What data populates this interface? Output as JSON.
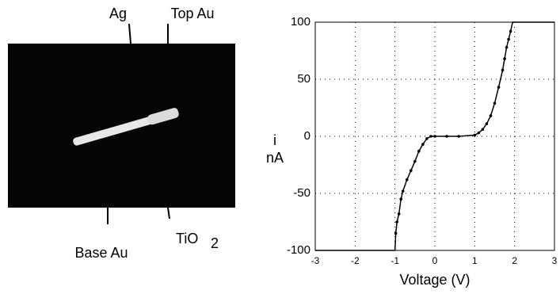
{
  "image_labels": {
    "ag": "Ag",
    "top_au": "Top Au",
    "base_au": "Base Au",
    "tio2": {
      "text": "TiO",
      "subscript": "2"
    }
  },
  "chart_data": {
    "type": "line",
    "xlabel": "Voltage (V)",
    "ylabel": [
      "i",
      "nA"
    ],
    "xlim": [
      -3,
      3
    ],
    "xticks": [
      -3,
      -2,
      -1,
      0,
      1,
      2,
      3
    ],
    "ylim": [
      -100,
      100
    ],
    "yticks": [
      -100,
      -50,
      0,
      50,
      100
    ],
    "grid": true,
    "series": [
      {
        "color": "#000000",
        "x": [
          -3,
          -1,
          -0.98,
          -0.95,
          -0.9,
          -0.85,
          -0.8,
          -0.7,
          -0.6,
          -0.5,
          -0.4,
          -0.3,
          -0.2,
          -0.1,
          0,
          0.3,
          0.6,
          1.0,
          1.1,
          1.2,
          1.3,
          1.4,
          1.5,
          1.6,
          1.7,
          1.75,
          1.8,
          1.85,
          1.9,
          1.95,
          3
        ],
        "values": [
          -100,
          -100,
          -85,
          -75,
          -68,
          -55,
          -48,
          -38,
          -30,
          -22,
          -13,
          -7,
          -2,
          0,
          0,
          0,
          0,
          1,
          3,
          6,
          11,
          18,
          29,
          43,
          58,
          68,
          78,
          85,
          92,
          100,
          100
        ]
      }
    ]
  }
}
